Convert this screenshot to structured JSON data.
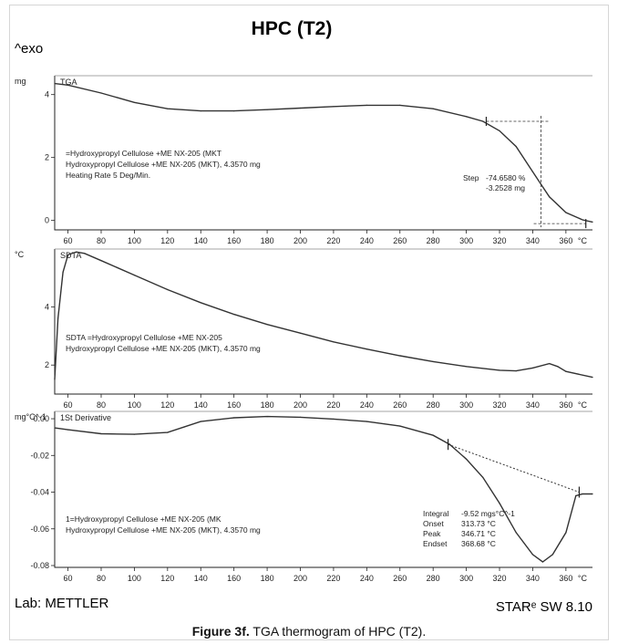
{
  "header": {
    "title": "HPC (T2)",
    "exo_label": "^exo"
  },
  "footer": {
    "lab": "Lab: METTLER",
    "software": "STARᵉ SW 8.10"
  },
  "caption": {
    "figure_label": "Figure 3f.",
    "text": " TGA thermogram of HPC (T2)."
  },
  "chart_data": [
    {
      "type": "line",
      "panel": "TGA",
      "panel_label": "TGA",
      "yunit": "mg",
      "xunit": "°C",
      "xlim": [
        52,
        376
      ],
      "ylim": [
        -0.3,
        4.6
      ],
      "xticks": [
        60,
        80,
        100,
        120,
        140,
        160,
        180,
        200,
        220,
        240,
        260,
        280,
        300,
        320,
        340,
        360
      ],
      "yticks": [
        0,
        2,
        4
      ],
      "series": [
        {
          "x": [
            52,
            60,
            80,
            100,
            120,
            140,
            160,
            180,
            200,
            220,
            240,
            260,
            280,
            300,
            310,
            320,
            330,
            340,
            345,
            350,
            360,
            370,
            376
          ],
          "y": [
            4.35,
            4.3,
            4.05,
            3.75,
            3.55,
            3.48,
            3.48,
            3.52,
            3.57,
            3.62,
            3.66,
            3.66,
            3.55,
            3.3,
            3.15,
            2.85,
            2.35,
            1.55,
            1.15,
            0.75,
            0.25,
            0.02,
            -0.05
          ]
        }
      ],
      "annotations": [
        "=Hydroxypropyl Cellulose +ME NX-205 (MKT",
        "Hydroxypropyl Cellulose +ME NX-205 (MKT), 4.3570 mg",
        "Heating Rate 5 Deg/Min."
      ],
      "step": {
        "label": "Step",
        "percent": "-74.6580 %",
        "mass": "-3.2528 mg",
        "x_start": 312,
        "x_mid": 345,
        "x_end": 372,
        "y_top": 3.15,
        "y_bottom": -0.1
      }
    },
    {
      "type": "line",
      "panel": "SDTA",
      "panel_label": "SDTA",
      "yunit": "°C",
      "xunit": "°C",
      "xlim": [
        52,
        376
      ],
      "ylim": [
        1.0,
        6.0
      ],
      "xticks": [
        60,
        80,
        100,
        120,
        140,
        160,
        180,
        200,
        220,
        240,
        260,
        280,
        300,
        320,
        340,
        360
      ],
      "yticks": [
        2,
        4
      ],
      "series": [
        {
          "x": [
            52,
            54,
            57,
            60,
            65,
            70,
            80,
            100,
            120,
            140,
            160,
            180,
            200,
            220,
            240,
            260,
            280,
            300,
            320,
            330,
            340,
            350,
            355,
            360,
            376
          ],
          "y": [
            1.5,
            3.6,
            5.2,
            5.8,
            5.9,
            5.85,
            5.6,
            5.1,
            4.6,
            4.15,
            3.75,
            3.4,
            3.1,
            2.8,
            2.55,
            2.32,
            2.12,
            1.95,
            1.82,
            1.8,
            1.9,
            2.05,
            1.95,
            1.78,
            1.58
          ]
        }
      ],
      "annotations": [
        "SDTA =Hydroxypropyl Cellulose +ME NX-205",
        "Hydroxypropyl Cellulose +ME NX-205 (MKT), 4.3570 mg"
      ]
    },
    {
      "type": "line",
      "panel": "1St Derivative",
      "panel_label": "1St Derivative",
      "yunit": "mg°C^-1",
      "xunit": "°C",
      "xlim": [
        52,
        376
      ],
      "ylim": [
        -0.081,
        0.004
      ],
      "xticks": [
        60,
        80,
        100,
        120,
        140,
        160,
        180,
        200,
        220,
        240,
        260,
        280,
        300,
        320,
        340,
        360
      ],
      "yticks": [
        0.0,
        -0.02,
        -0.04,
        -0.06,
        -0.08
      ],
      "series": [
        {
          "x": [
            52,
            60,
            80,
            100,
            120,
            130,
            140,
            160,
            180,
            200,
            220,
            240,
            260,
            280,
            290,
            300,
            310,
            320,
            330,
            340,
            346,
            352,
            360,
            366,
            370,
            376
          ],
          "y": [
            -0.005,
            -0.006,
            -0.0082,
            -0.0085,
            -0.0075,
            -0.0045,
            -0.0015,
            0.0005,
            0.0012,
            0.0008,
            -0.0002,
            -0.0015,
            -0.004,
            -0.009,
            -0.014,
            -0.022,
            -0.032,
            -0.046,
            -0.062,
            -0.074,
            -0.078,
            -0.074,
            -0.062,
            -0.042,
            -0.041,
            -0.041
          ]
        }
      ],
      "baseline": {
        "x": [
          289,
          368
        ],
        "y": [
          -0.014,
          -0.04
        ]
      },
      "annotations": [
        "1=Hydroxypropyl Cellulose +ME NX-205 (MK",
        "Hydroxypropyl Cellulose +ME NX-205 (MKT), 4.3570 mg"
      ],
      "results": [
        {
          "label": "Integral",
          "value": "-9.52 mgs°C^-1"
        },
        {
          "label": "Onset",
          "value": "313.73 °C"
        },
        {
          "label": "Peak",
          "value": "346.71 °C"
        },
        {
          "label": "Endset",
          "value": "368.68 °C"
        }
      ]
    }
  ]
}
